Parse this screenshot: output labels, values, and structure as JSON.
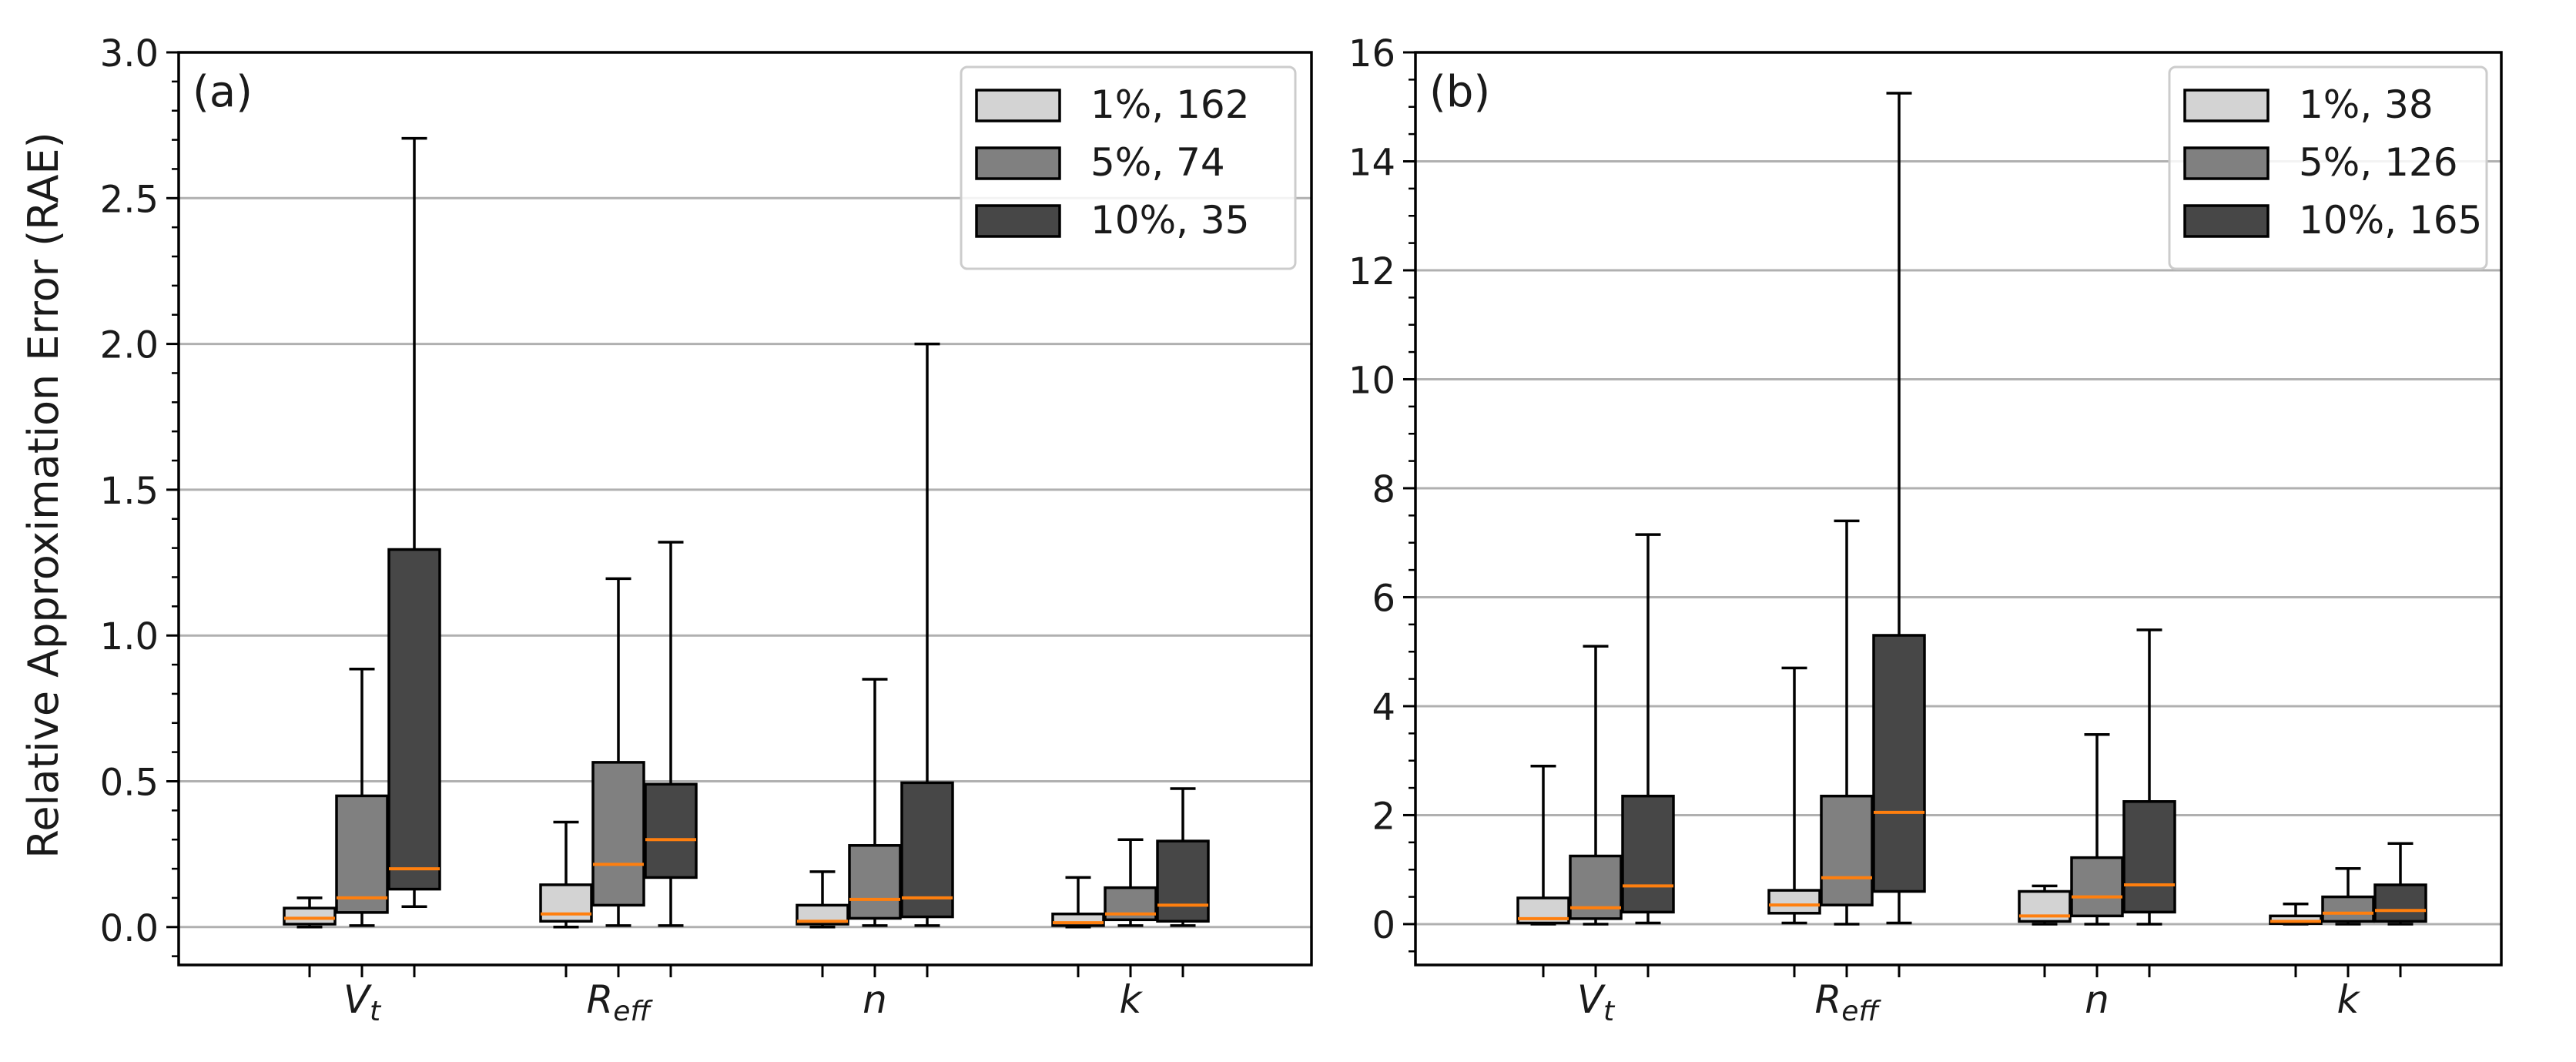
{
  "ylabel": "Relative Approximation Error (RAE)",
  "colors": {
    "series": [
      "#d3d3d3",
      "#808080",
      "#474747"
    ],
    "median": "#ff7f0e",
    "grid": "#b0b0b0",
    "edge": "#000000"
  },
  "chart_data": [
    {
      "type": "box",
      "panel_label": "(a)",
      "title": "",
      "xlabel": "",
      "ylabel": "Relative Approximation Error (RAE)",
      "ylim": [
        -0.13,
        3.0
      ],
      "yticks": [
        "0.0",
        "0.5",
        "1.0",
        "1.5",
        "2.0",
        "2.5",
        "3.0"
      ],
      "ytick_values": [
        0,
        0.5,
        1.0,
        1.5,
        2.0,
        2.5,
        3.0
      ],
      "minor_step": 0.1,
      "grid": "horizontal-major",
      "legend_position": "top-right",
      "categories": [
        {
          "base": "V",
          "sub": "t"
        },
        {
          "base": "R",
          "sub": "eff"
        },
        {
          "base": "n",
          "sub": ""
        },
        {
          "base": "k",
          "sub": ""
        }
      ],
      "series": [
        {
          "name": "1%, 162",
          "boxes": [
            {
              "min": 0.0,
              "q1": 0.01,
              "median": 0.03,
              "q3": 0.065,
              "max": 0.1
            },
            {
              "min": 0.0,
              "q1": 0.02,
              "median": 0.045,
              "q3": 0.145,
              "max": 0.36
            },
            {
              "min": 0.0,
              "q1": 0.01,
              "median": 0.02,
              "q3": 0.075,
              "max": 0.19
            },
            {
              "min": 0.0,
              "q1": 0.005,
              "median": 0.015,
              "q3": 0.045,
              "max": 0.17
            }
          ]
        },
        {
          "name": "5%, 74",
          "boxes": [
            {
              "min": 0.005,
              "q1": 0.05,
              "median": 0.1,
              "q3": 0.45,
              "max": 0.885
            },
            {
              "min": 0.005,
              "q1": 0.075,
              "median": 0.215,
              "q3": 0.565,
              "max": 1.195
            },
            {
              "min": 0.005,
              "q1": 0.03,
              "median": 0.095,
              "q3": 0.28,
              "max": 0.85
            },
            {
              "min": 0.005,
              "q1": 0.025,
              "median": 0.045,
              "q3": 0.135,
              "max": 0.3
            }
          ]
        },
        {
          "name": "10%, 35",
          "boxes": [
            {
              "min": 0.07,
              "q1": 0.13,
              "median": 0.2,
              "q3": 1.295,
              "max": 2.705
            },
            {
              "min": 0.005,
              "q1": 0.17,
              "median": 0.3,
              "q3": 0.49,
              "max": 1.32
            },
            {
              "min": 0.005,
              "q1": 0.035,
              "median": 0.1,
              "q3": 0.495,
              "max": 2.0
            },
            {
              "min": 0.005,
              "q1": 0.02,
              "median": 0.075,
              "q3": 0.295,
              "max": 0.475
            }
          ]
        }
      ]
    },
    {
      "type": "box",
      "panel_label": "(b)",
      "title": "",
      "xlabel": "",
      "ylabel": "",
      "ylim": [
        -0.75,
        16.0
      ],
      "yticks": [
        "0",
        "2",
        "4",
        "6",
        "8",
        "10",
        "12",
        "14",
        "16"
      ],
      "ytick_values": [
        0,
        2,
        4,
        6,
        8,
        10,
        12,
        14,
        16
      ],
      "minor_step": 0.5,
      "grid": "horizontal-major",
      "legend_position": "top-right",
      "categories": [
        {
          "base": "V",
          "sub": "t"
        },
        {
          "base": "R",
          "sub": "eff"
        },
        {
          "base": "n",
          "sub": ""
        },
        {
          "base": "k",
          "sub": ""
        }
      ],
      "series": [
        {
          "name": "1%, 38",
          "boxes": [
            {
              "min": 0.0,
              "q1": 0.02,
              "median": 0.1,
              "q3": 0.48,
              "max": 2.9
            },
            {
              "min": 0.02,
              "q1": 0.2,
              "median": 0.35,
              "q3": 0.62,
              "max": 4.7
            },
            {
              "min": 0.0,
              "q1": 0.05,
              "median": 0.15,
              "q3": 0.6,
              "max": 0.7
            },
            {
              "min": 0.0,
              "q1": 0.01,
              "median": 0.05,
              "q3": 0.15,
              "max": 0.37
            }
          ]
        },
        {
          "name": "5%, 126",
          "boxes": [
            {
              "min": 0.0,
              "q1": 0.1,
              "median": 0.3,
              "q3": 1.25,
              "max": 5.1
            },
            {
              "min": 0.0,
              "q1": 0.35,
              "median": 0.85,
              "q3": 2.35,
              "max": 7.4
            },
            {
              "min": 0.0,
              "q1": 0.15,
              "median": 0.5,
              "q3": 1.22,
              "max": 3.48
            },
            {
              "min": 0.0,
              "q1": 0.05,
              "median": 0.2,
              "q3": 0.5,
              "max": 1.02
            }
          ]
        },
        {
          "name": "10%, 165",
          "boxes": [
            {
              "min": 0.02,
              "q1": 0.22,
              "median": 0.7,
              "q3": 2.35,
              "max": 7.15
            },
            {
              "min": 0.02,
              "q1": 0.6,
              "median": 2.05,
              "q3": 5.3,
              "max": 15.25
            },
            {
              "min": 0.0,
              "q1": 0.22,
              "median": 0.72,
              "q3": 2.25,
              "max": 5.4
            },
            {
              "min": 0.0,
              "q1": 0.05,
              "median": 0.25,
              "q3": 0.72,
              "max": 1.48
            }
          ]
        }
      ]
    }
  ]
}
